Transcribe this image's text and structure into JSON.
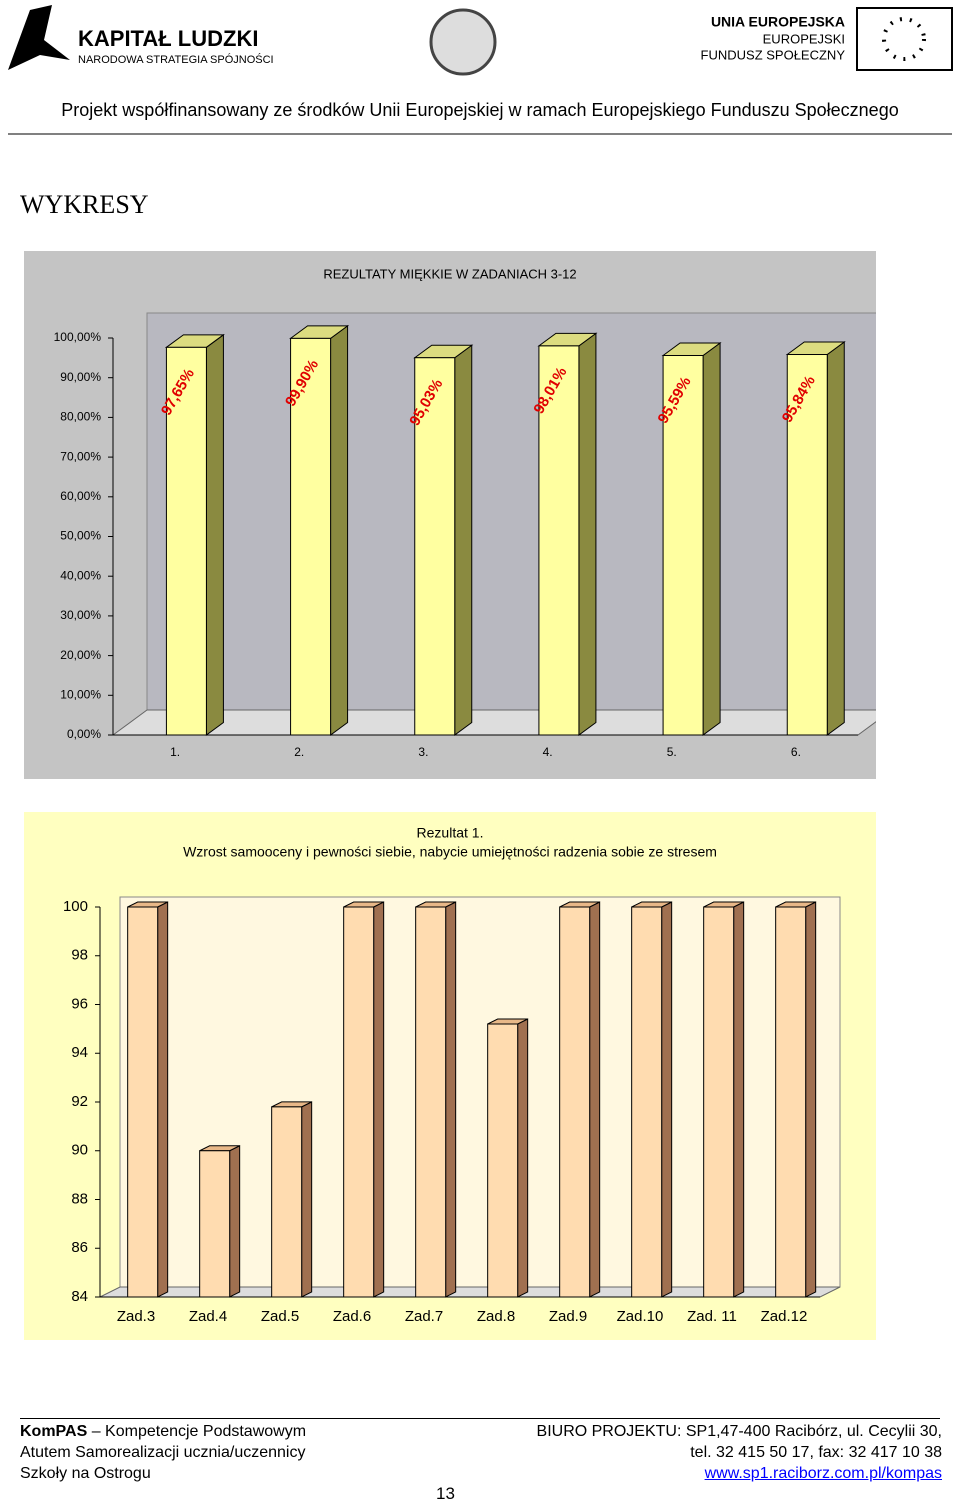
{
  "header": {
    "logo_title": "KAPITAŁ LUDZKI",
    "logo_subtitle": "NARODOWA STRATEGIA SPÓJNOŚCI",
    "eu_lines": [
      "UNIA EUROPEJSKA",
      "EUROPEJSKI",
      "FUNDUSZ SPOŁECZNY"
    ],
    "project": "Projekt współfinansowany ze środków Unii Europejskiej w ramach Europejskiego Funduszu Społecznego"
  },
  "heading": "WYKRESY",
  "chart_data": [
    {
      "type": "bar",
      "title": "REZULTATY MIĘKKIE W ZADANIACH 3-12",
      "categories": [
        "1.",
        "2.",
        "3.",
        "4.",
        "5.",
        "6."
      ],
      "values": [
        97.65,
        99.9,
        95.03,
        98.01,
        95.59,
        95.84
      ],
      "value_labels": [
        "97,65%",
        "99,90%",
        "95,03%",
        "98,01%",
        "95,59%",
        "95,84%"
      ],
      "color": "#ffffa0",
      "ylim": [
        0,
        100
      ],
      "yticks": [
        {
          "value": 0,
          "label": "0,00%"
        },
        {
          "value": 10,
          "label": "10,00%"
        },
        {
          "value": 20,
          "label": "20,00%"
        },
        {
          "value": 30,
          "label": "30,00%"
        },
        {
          "value": 40,
          "label": "40,00%"
        },
        {
          "value": 50,
          "label": "50,00%"
        },
        {
          "value": 60,
          "label": "60,00%"
        },
        {
          "value": 70,
          "label": "70,00%"
        },
        {
          "value": 80,
          "label": "80,00%"
        },
        {
          "value": 90,
          "label": "90,00%"
        },
        {
          "value": 100,
          "label": "100,00%"
        }
      ],
      "grid": false
    },
    {
      "type": "bar",
      "title": "Rezultat 1.",
      "subtitle": "Wzrost samooceny i pewności siebie, nabycie umiejętności radzenia sobie ze stresem",
      "categories": [
        "Zad.3",
        "Zad.4",
        "Zad.5",
        "Zad.6",
        "Zad.7",
        "Zad.8",
        "Zad.9",
        "Zad.10",
        "Zad. 11",
        "Zad.12"
      ],
      "values": [
        100,
        90,
        91.8,
        100,
        100,
        95.2,
        100,
        100,
        100,
        100
      ],
      "color": "#ffdcb0",
      "ylim": [
        84,
        100
      ],
      "yticks": [
        84,
        86,
        88,
        90,
        92,
        94,
        96,
        98,
        100
      ],
      "grid": false
    }
  ],
  "footer": {
    "left": [
      "KomPAS",
      " – Kompetencje Podstawowym",
      "Atutem Samorealizacji ucznia/uczennicy",
      "Szkoły na Ostrogu"
    ],
    "right": [
      "BIURO PROJEKTU: SP1,47-400 Racibórz, ul. Cecylii 30,",
      "tel. 32 415 50 17, fax: 32 417 10 38",
      "www.sp1.raciborz.com.pl/kompas"
    ],
    "page": "13"
  }
}
